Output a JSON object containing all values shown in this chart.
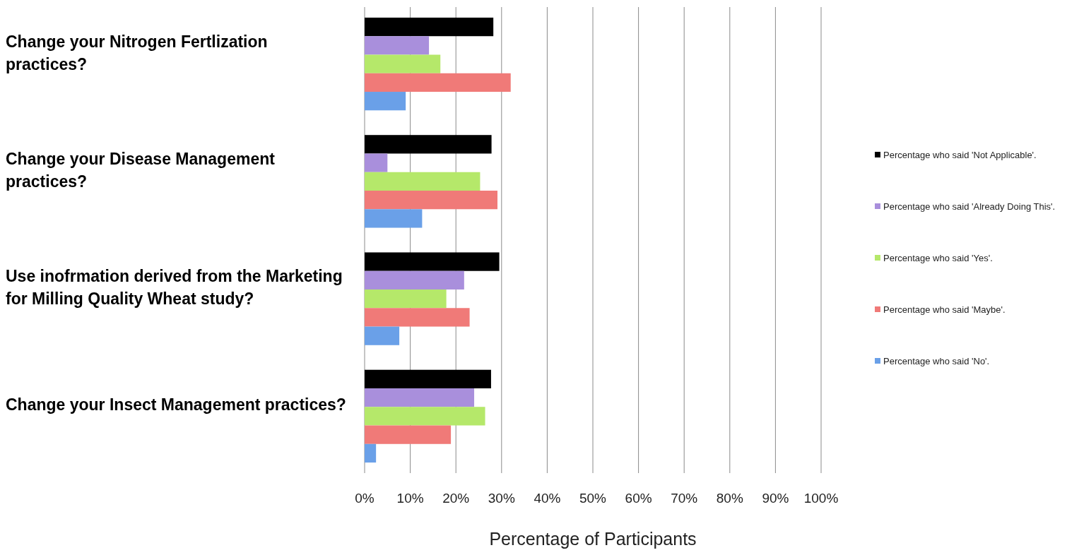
{
  "chart_data": {
    "type": "bar",
    "orientation": "horizontal",
    "xlabel": "Percentage of Participants",
    "categories": [
      "Change your Nitrogen Fertlization practices?",
      "Change your Disease Management practices?",
      "Use inofrmation derived from the Marketing for Milling Quality Wheat study?",
      "Change your Insect Management practices?"
    ],
    "series": [
      {
        "name": "Percentage who said 'Not Applicable'.",
        "color": "#000000",
        "values": [
          28.2,
          27.8,
          29.5,
          27.7
        ]
      },
      {
        "name": "Percentage who said 'Already Doing This'.",
        "color": "#a98fdc",
        "values": [
          14.1,
          5.0,
          21.8,
          24.0
        ]
      },
      {
        "name": "Percentage who said 'Yes'.",
        "color": "#b5e86a",
        "values": [
          16.6,
          25.3,
          17.9,
          26.4
        ]
      },
      {
        "name": "Percentage who said 'Maybe'.",
        "color": "#f07a78",
        "values": [
          32.0,
          29.1,
          23.0,
          18.9
        ]
      },
      {
        "name": "Percentage who said 'No'.",
        "color": "#6aa0e8",
        "values": [
          9.0,
          12.6,
          7.6,
          2.5
        ]
      }
    ],
    "xlim": [
      0,
      100
    ],
    "xticks": [
      {
        "value": 0,
        "label": "0%"
      },
      {
        "value": 10,
        "label": "10%"
      },
      {
        "value": 20,
        "label": "20%"
      },
      {
        "value": 30,
        "label": "30%"
      },
      {
        "value": 40,
        "label": "40%"
      },
      {
        "value": 50,
        "label": "50%"
      },
      {
        "value": 60,
        "label": "60%"
      },
      {
        "value": 70,
        "label": "70%"
      },
      {
        "value": 80,
        "label": "80%"
      },
      {
        "value": 90,
        "label": "90%"
      },
      {
        "value": 100,
        "label": "100%"
      }
    ],
    "grid": "x",
    "legend": "right"
  }
}
